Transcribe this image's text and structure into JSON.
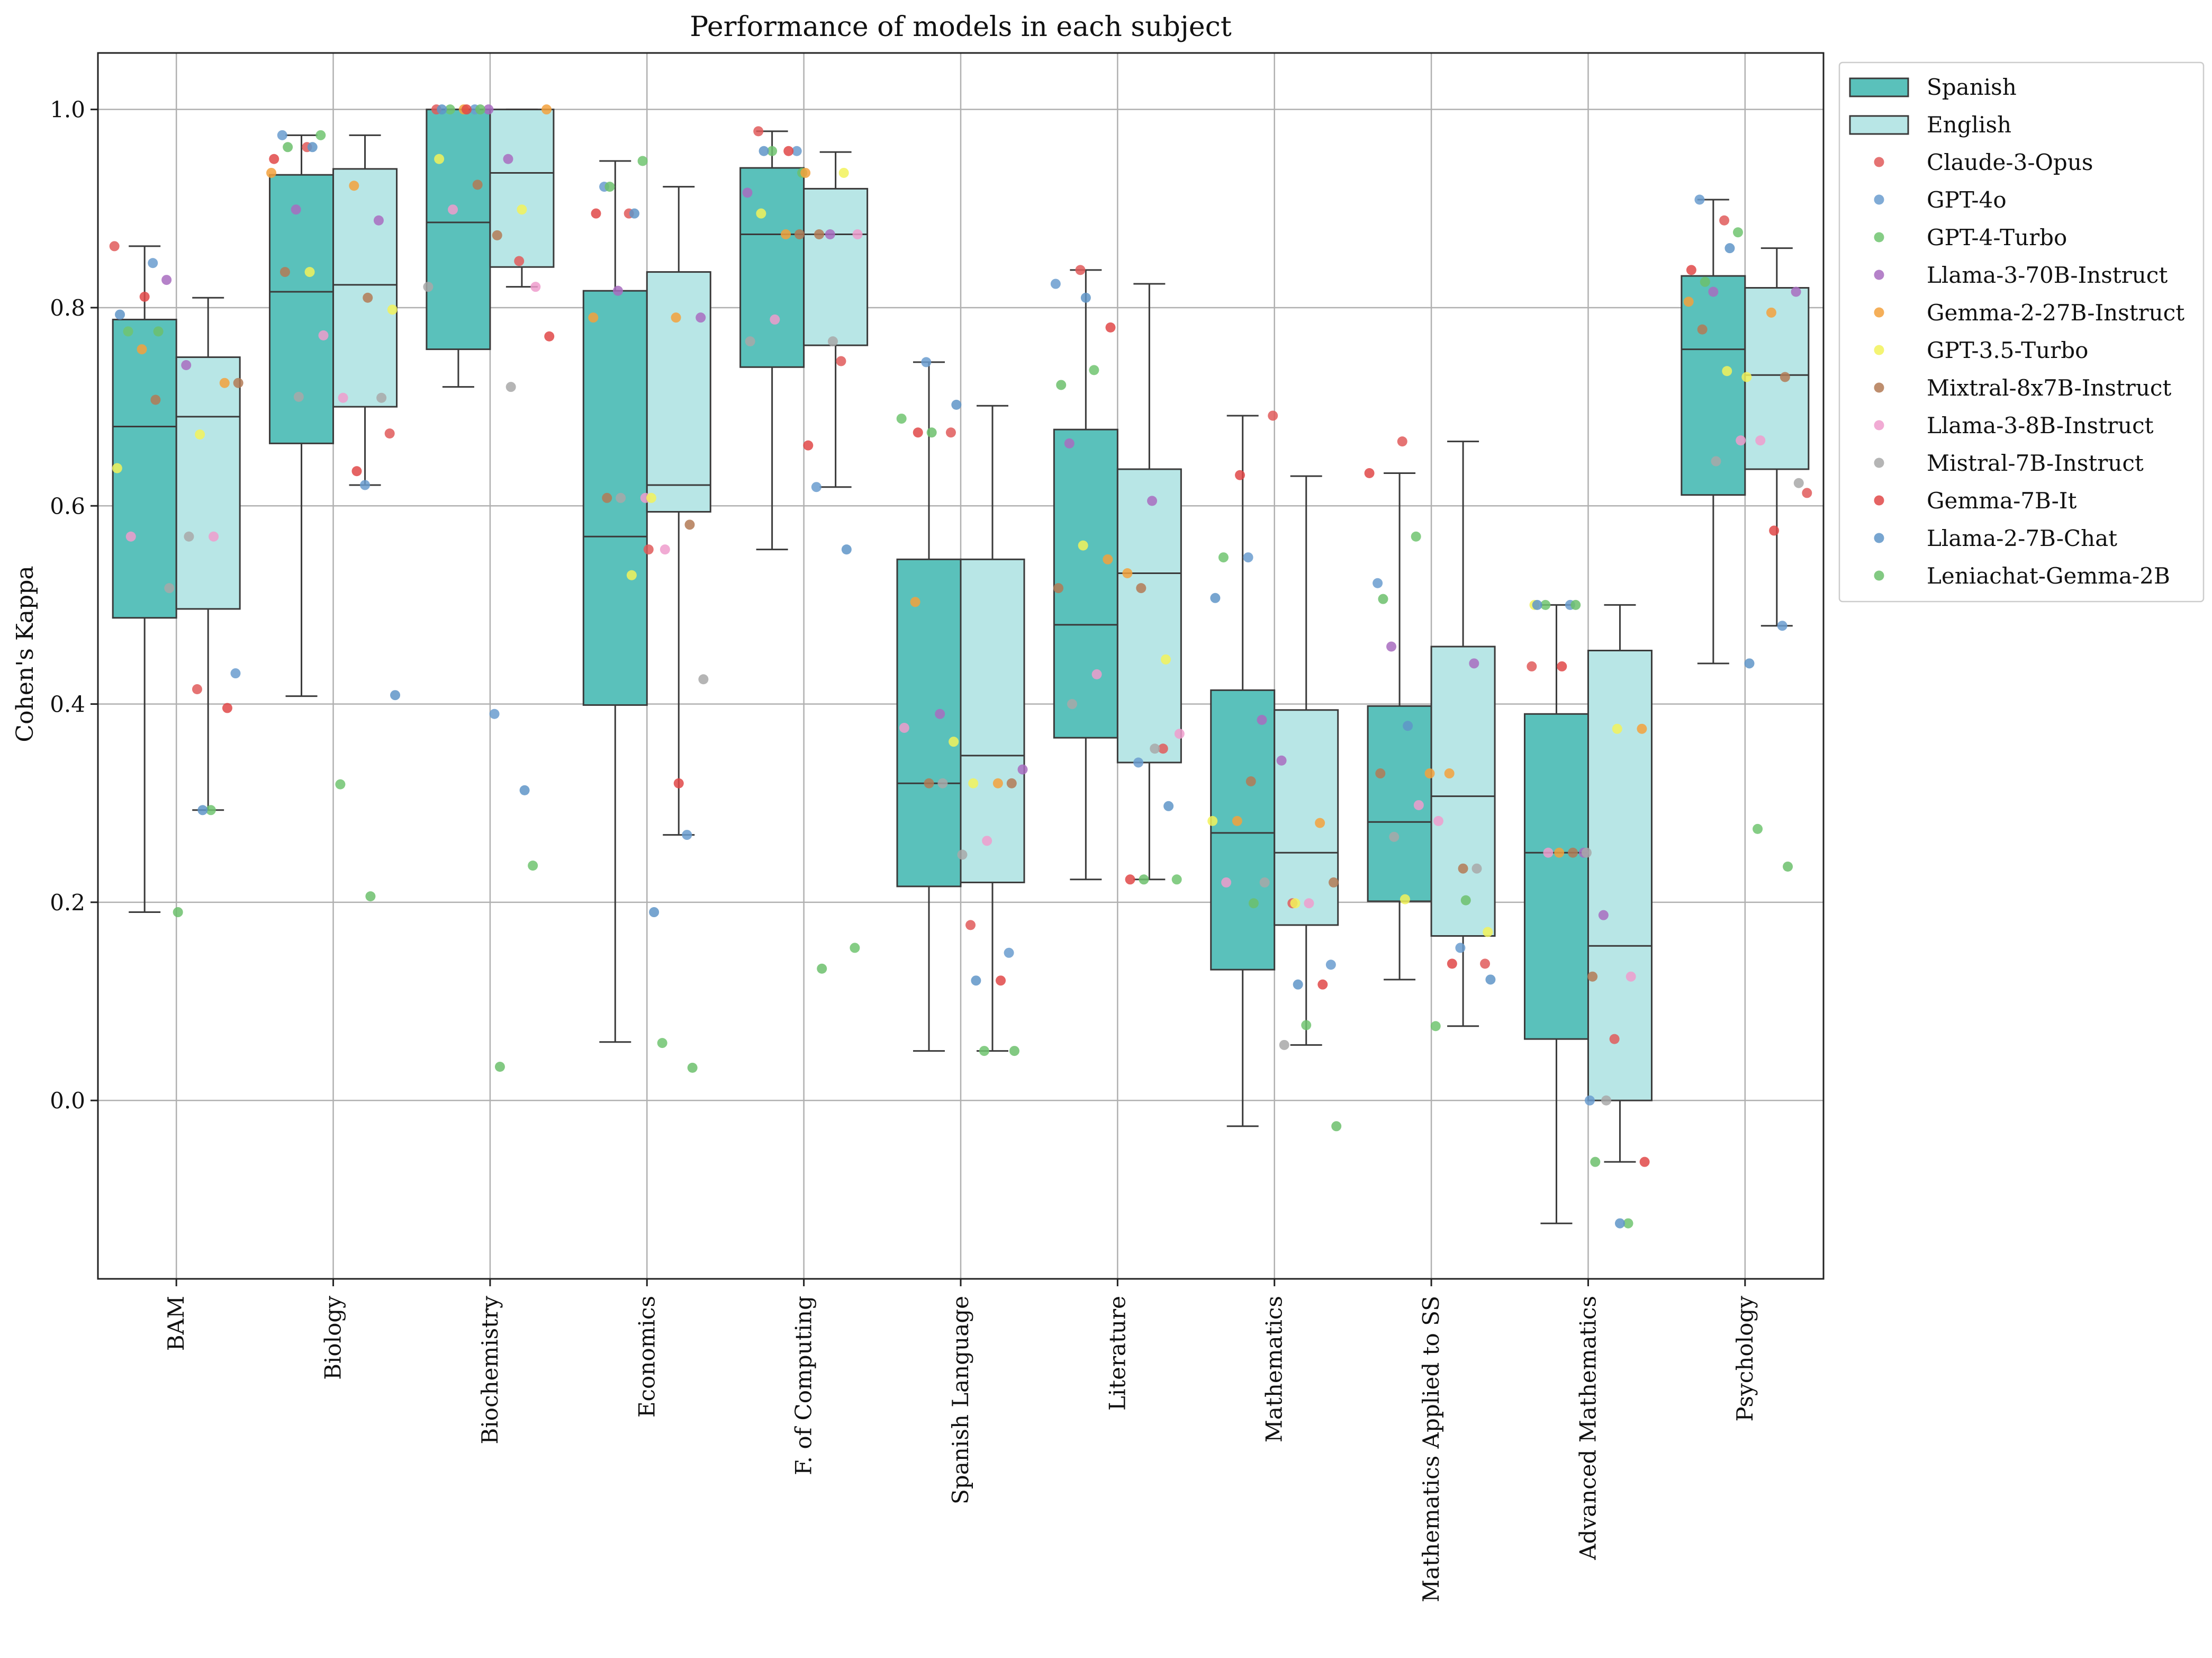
{
  "chart_data": {
    "type": "box",
    "title": "Performance of models in each subject",
    "xlabel": "",
    "ylabel": "Cohen's Kappa",
    "ylim": [
      -0.18,
      1.057
    ],
    "yticks": [
      0.0,
      0.2,
      0.4,
      0.6,
      0.8,
      1.0
    ],
    "ytick_labels": [
      "0.0",
      "0.2",
      "0.4",
      "0.6",
      "0.8",
      "1.0"
    ],
    "grid": true,
    "legend_position": "outside-top-right",
    "categories": [
      "BAM",
      "Biology",
      "Biochemistry",
      "Economics",
      "F. of Computing",
      "Spanish Language",
      "Literature",
      "Mathematics",
      "Mathematics Applied to SS",
      "Advanced Mathematics",
      "Psychology"
    ],
    "groups": [
      {
        "name": "Spanish",
        "color": "#5ac1bb"
      },
      {
        "name": "English",
        "color": "#b8e6e6"
      }
    ],
    "models": [
      {
        "name": "Claude-3-Opus",
        "color": "#e05a5a"
      },
      {
        "name": "GPT-4o",
        "color": "#6a9ccf"
      },
      {
        "name": "GPT-4-Turbo",
        "color": "#70c470"
      },
      {
        "name": "Llama-3-70B-Instruct",
        "color": "#a86cc0"
      },
      {
        "name": "Gemma-2-27B-Instruct",
        "color": "#f3a13c"
      },
      {
        "name": "GPT-3.5-Turbo",
        "color": "#f2f25a"
      },
      {
        "name": "Mixtral-8x7B-Instruct",
        "color": "#b37a55"
      },
      {
        "name": "Llama-3-8B-Instruct",
        "color": "#ef9ccc"
      },
      {
        "name": "Mistral-7B-Instruct",
        "color": "#a8a8a8"
      },
      {
        "name": "Gemma-7B-It",
        "color": "#e04848"
      },
      {
        "name": "Llama-2-7B-Chat",
        "color": "#5f95c8"
      },
      {
        "name": "Leniachat-Gemma-2B",
        "color": "#6cbf6c"
      }
    ],
    "boxes": {
      "Spanish": [
        {
          "wlo": 0.19,
          "q1": 0.487,
          "med": 0.68,
          "q3": 0.788,
          "whi": 0.862
        },
        {
          "wlo": 0.408,
          "q1": 0.663,
          "med": 0.816,
          "q3": 0.934,
          "whi": 0.974
        },
        {
          "wlo": 0.72,
          "q1": 0.758,
          "med": 0.886,
          "q3": 1.0,
          "whi": 1.0
        },
        {
          "wlo": 0.059,
          "q1": 0.399,
          "med": 0.569,
          "q3": 0.817,
          "whi": 0.948
        },
        {
          "wlo": 0.556,
          "q1": 0.74,
          "med": 0.874,
          "q3": 0.941,
          "whi": 0.978
        },
        {
          "wlo": 0.05,
          "q1": 0.216,
          "med": 0.32,
          "q3": 0.546,
          "whi": 0.745
        },
        {
          "wlo": 0.223,
          "q1": 0.366,
          "med": 0.48,
          "q3": 0.677,
          "whi": 0.838
        },
        {
          "wlo": -0.026,
          "q1": 0.132,
          "med": 0.27,
          "q3": 0.414,
          "whi": 0.691
        },
        {
          "wlo": 0.122,
          "q1": 0.201,
          "med": 0.281,
          "q3": 0.398,
          "whi": 0.633
        },
        {
          "wlo": -0.124,
          "q1": 0.062,
          "med": 0.25,
          "q3": 0.39,
          "whi": 0.5
        },
        {
          "wlo": 0.441,
          "q1": 0.611,
          "med": 0.758,
          "q3": 0.832,
          "whi": 0.909
        }
      ],
      "English": [
        {
          "wlo": 0.293,
          "q1": 0.496,
          "med": 0.69,
          "q3": 0.75,
          "whi": 0.81
        },
        {
          "wlo": 0.621,
          "q1": 0.7,
          "med": 0.823,
          "q3": 0.94,
          "whi": 0.974
        },
        {
          "wlo": 0.821,
          "q1": 0.841,
          "med": 0.936,
          "q3": 1.0,
          "whi": 1.0
        },
        {
          "wlo": 0.268,
          "q1": 0.594,
          "med": 0.621,
          "q3": 0.836,
          "whi": 0.922
        },
        {
          "wlo": 0.619,
          "q1": 0.762,
          "med": 0.874,
          "q3": 0.92,
          "whi": 0.957
        },
        {
          "wlo": 0.05,
          "q1": 0.22,
          "med": 0.348,
          "q3": 0.546,
          "whi": 0.701
        },
        {
          "wlo": 0.223,
          "q1": 0.341,
          "med": 0.532,
          "q3": 0.637,
          "whi": 0.824
        },
        {
          "wlo": 0.056,
          "q1": 0.177,
          "med": 0.25,
          "q3": 0.394,
          "whi": 0.63
        },
        {
          "wlo": 0.075,
          "q1": 0.166,
          "med": 0.307,
          "q3": 0.458,
          "whi": 0.665
        },
        {
          "wlo": -0.062,
          "q1": 0.0,
          "med": 0.156,
          "q3": 0.454,
          "whi": 0.5
        },
        {
          "wlo": 0.479,
          "q1": 0.637,
          "med": 0.732,
          "q3": 0.82,
          "whi": 0.86
        }
      ]
    },
    "points": {
      "Spanish": [
        [
          0.862,
          0.845,
          0.776,
          0.828,
          0.758,
          0.638,
          0.707,
          0.569,
          0.517,
          0.811,
          0.793,
          0.776
        ],
        [
          0.962,
          0.974,
          0.974,
          0.899,
          0.936,
          0.836,
          0.836,
          0.772,
          0.71,
          0.95,
          0.962,
          0.962
        ],
        [
          1.0,
          1.0,
          1.0,
          1.0,
          1.0,
          0.95,
          0.924,
          0.899,
          0.821,
          1.0,
          1.0,
          1.0
        ],
        [
          0.895,
          0.922,
          0.948,
          0.817,
          0.79,
          0.53,
          0.608,
          0.608,
          0.608,
          0.895,
          0.895,
          0.922
        ],
        [
          0.978,
          0.958,
          0.958,
          0.916,
          0.874,
          0.895,
          0.874,
          0.788,
          0.766,
          0.958,
          0.958,
          0.936
        ],
        [
          0.674,
          0.745,
          0.688,
          0.39,
          0.503,
          0.362,
          0.32,
          0.376,
          0.32,
          0.674,
          0.702,
          0.674
        ],
        [
          0.838,
          0.824,
          0.737,
          0.663,
          0.546,
          0.56,
          0.517,
          0.43,
          0.4,
          0.78,
          0.81,
          0.722
        ],
        [
          0.691,
          0.548,
          0.548,
          0.384,
          0.282,
          0.282,
          0.322,
          0.22,
          0.22,
          0.631,
          0.507,
          0.199
        ],
        [
          0.665,
          0.522,
          0.569,
          0.458,
          0.33,
          0.203,
          0.33,
          0.298,
          0.266,
          0.633,
          0.378,
          0.506
        ],
        [
          0.438,
          0.5,
          0.5,
          0.25,
          0.25,
          0.5,
          0.25,
          0.25,
          0.25,
          0.438,
          0.5,
          0.5
        ],
        [
          0.888,
          0.909,
          0.876,
          0.816,
          0.806,
          0.736,
          0.778,
          0.666,
          0.645,
          0.838,
          0.86,
          0.826
        ]
      ],
      "English": [
        [
          0.415,
          0.431,
          0.293,
          0.742,
          0.724,
          0.672,
          0.724,
          0.569,
          0.569,
          0.396,
          0.293,
          0.19
        ],
        [
          0.673,
          0.621,
          0.319,
          0.888,
          0.923,
          0.798,
          0.81,
          0.709,
          0.709,
          0.635,
          0.409,
          0.206
        ],
        [
          0.847,
          0.39,
          0.237,
          0.95,
          1.0,
          0.899,
          0.873,
          0.821,
          0.72,
          0.771,
          0.313,
          0.034
        ],
        [
          0.556,
          0.268,
          0.058,
          0.79,
          0.79,
          0.608,
          0.581,
          0.556,
          0.425,
          0.32,
          0.19,
          0.033
        ],
        [
          0.746,
          0.619,
          0.154,
          0.874,
          0.936,
          0.936,
          0.874,
          0.874,
          0.766,
          0.661,
          0.556,
          0.133
        ],
        [
          0.177,
          0.149,
          0.05,
          0.334,
          0.32,
          0.32,
          0.32,
          0.262,
          0.248,
          0.121,
          0.121,
          0.05
        ],
        [
          0.355,
          0.341,
          0.223,
          0.605,
          0.532,
          0.445,
          0.517,
          0.37,
          0.355,
          0.223,
          0.297,
          0.223
        ],
        [
          0.199,
          0.137,
          0.076,
          0.343,
          0.28,
          0.199,
          0.22,
          0.199,
          0.056,
          0.117,
          0.117,
          -0.026
        ],
        [
          0.138,
          0.154,
          0.075,
          0.441,
          0.33,
          0.17,
          0.234,
          0.282,
          0.234,
          0.138,
          0.122,
          0.202
        ],
        [
          0.062,
          0.0,
          -0.124,
          0.187,
          0.375,
          0.375,
          0.125,
          0.125,
          0.0,
          -0.062,
          -0.124,
          -0.062
        ],
        [
          0.613,
          0.479,
          0.274,
          0.816,
          0.795,
          0.73,
          0.73,
          0.666,
          0.623,
          0.575,
          0.441,
          0.236
        ]
      ]
    }
  }
}
